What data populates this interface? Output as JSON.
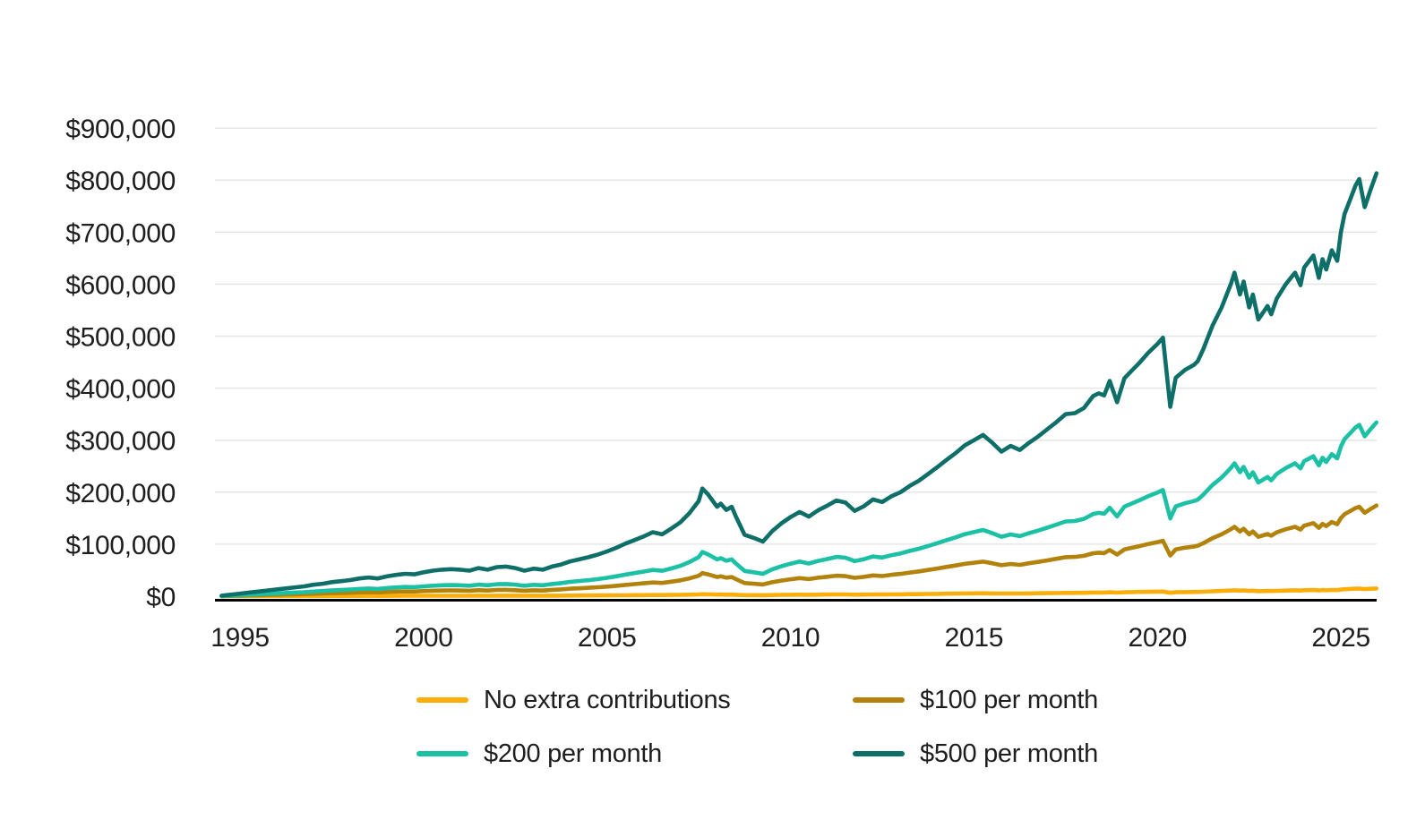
{
  "chart_data": {
    "type": "line",
    "title": "",
    "xlabel": "",
    "ylabel": "",
    "grid": "horizontal",
    "legend_position": "bottom",
    "values_unit": "thousand dollars",
    "style": {
      "background": "#FFFFFF",
      "grid_color": "#E6E6E6",
      "axis_color": "#000000",
      "text_color": "#1E1E1E"
    },
    "x_axis": {
      "ticks": [
        {
          "label": "1995",
          "year": 1995
        },
        {
          "label": "2000",
          "year": 2000
        },
        {
          "label": "2005",
          "year": 2005
        },
        {
          "label": "2010",
          "year": 2010
        },
        {
          "label": "2015",
          "year": 2015
        },
        {
          "label": "2020",
          "year": 2020
        },
        {
          "label": "2025",
          "year": 2025
        }
      ],
      "range_years": [
        1994.4,
        2026.0
      ]
    },
    "y_axis": {
      "ticks": [
        {
          "label": "$0",
          "value_k": 0
        },
        {
          "label": "$100,000",
          "value_k": 100
        },
        {
          "label": "$200,000",
          "value_k": 200
        },
        {
          "label": "$300,000",
          "value_k": 300
        },
        {
          "label": "$400,000",
          "value_k": 400
        },
        {
          "label": "$500,000",
          "value_k": 500
        },
        {
          "label": "$600,000",
          "value_k": 600
        },
        {
          "label": "$700,000",
          "value_k": 700
        },
        {
          "label": "$800,000",
          "value_k": 800
        },
        {
          "label": "$900,000",
          "value_k": 900
        }
      ],
      "range_k": [
        0,
        900
      ]
    },
    "x_years": [
      1994.5,
      1994.75,
      1995.0,
      1995.25,
      1995.5,
      1995.75,
      1996.0,
      1996.25,
      1996.5,
      1996.75,
      1997.0,
      1997.25,
      1997.5,
      1997.75,
      1998.0,
      1998.25,
      1998.5,
      1998.75,
      1999.0,
      1999.25,
      1999.5,
      1999.75,
      2000.0,
      2000.25,
      2000.5,
      2000.75,
      2001.0,
      2001.25,
      2001.5,
      2001.75,
      2002.0,
      2002.25,
      2002.5,
      2002.75,
      2003.0,
      2003.25,
      2003.5,
      2003.75,
      2004.0,
      2004.25,
      2004.5,
      2004.75,
      2005.0,
      2005.25,
      2005.5,
      2005.75,
      2006.0,
      2006.25,
      2006.5,
      2006.75,
      2007.0,
      2007.25,
      2007.5,
      2007.6,
      2007.75,
      2008.0,
      2008.1,
      2008.25,
      2008.4,
      2008.5,
      2008.75,
      2009.0,
      2009.25,
      2009.5,
      2009.75,
      2010.0,
      2010.25,
      2010.5,
      2010.75,
      2011.0,
      2011.25,
      2011.5,
      2011.75,
      2012.0,
      2012.25,
      2012.5,
      2012.75,
      2013.0,
      2013.25,
      2013.5,
      2013.75,
      2014.0,
      2014.25,
      2014.5,
      2014.75,
      2015.0,
      2015.25,
      2015.5,
      2015.75,
      2016.0,
      2016.25,
      2016.5,
      2016.75,
      2017.0,
      2017.25,
      2017.5,
      2017.75,
      2018.0,
      2018.25,
      2018.4,
      2018.55,
      2018.7,
      2018.9,
      2019.1,
      2019.25,
      2019.5,
      2019.75,
      2020.0,
      2020.15,
      2020.35,
      2020.5,
      2020.75,
      2021.0,
      2021.1,
      2021.25,
      2021.5,
      2021.75,
      2022.0,
      2022.1,
      2022.25,
      2022.35,
      2022.5,
      2022.6,
      2022.75,
      2023.0,
      2023.1,
      2023.25,
      2023.5,
      2023.75,
      2023.9,
      2024.0,
      2024.25,
      2024.4,
      2024.5,
      2024.6,
      2024.75,
      2024.9,
      2025.0,
      2025.1,
      2025.25,
      2025.4,
      2025.5,
      2025.65,
      2025.8,
      2025.97
    ],
    "series": [
      {
        "name": "No extra contributions",
        "color": "#FBAE09",
        "values_k": [
          0,
          0.1,
          0.1,
          0.1,
          0.2,
          0.2,
          0.2,
          0.3,
          0.3,
          0.3,
          0.4,
          0.4,
          0.5,
          0.5,
          0.6,
          0.6,
          0.7,
          0.6,
          0.7,
          0.7,
          0.8,
          0.8,
          0.8,
          0.9,
          0.9,
          0.9,
          0.9,
          0.9,
          1,
          0.9,
          1,
          1,
          1,
          0.9,
          1,
          0.9,
          1,
          1.1,
          1.2,
          1.3,
          1.4,
          1.5,
          1.6,
          1.7,
          1.8,
          2,
          2.1,
          2.2,
          2.2,
          2.4,
          2.6,
          2.9,
          3.3,
          3.8,
          3.6,
          3.1,
          3.2,
          3,
          3.1,
          2.8,
          2.1,
          2,
          1.9,
          2.3,
          2.5,
          2.8,
          2.9,
          2.8,
          3,
          3.2,
          3.3,
          3.3,
          3,
          3.1,
          3.4,
          3.3,
          3.5,
          3.6,
          3.9,
          4,
          4.3,
          4.5,
          4.8,
          5,
          5.3,
          5.5,
          5.6,
          5.4,
          5.1,
          5.3,
          5.1,
          5.4,
          5.6,
          5.8,
          6.1,
          6.4,
          6.4,
          6.6,
          7,
          7.1,
          7,
          7.5,
          6.8,
          7.6,
          7.8,
          8.2,
          8.5,
          8.8,
          9,
          6.6,
          7.6,
          7.9,
          8.1,
          8.2,
          8.6,
          9.5,
          10.1,
          10.9,
          11.3,
          10.6,
          11,
          10.1,
          10.6,
          9.7,
          10.2,
          9.9,
          10.4,
          10.9,
          11.3,
          10.9,
          11.5,
          11.9,
          11.1,
          11.8,
          11.4,
          12.1,
          11.7,
          12.7,
          13.4,
          13.9,
          14.4,
          14.6,
          13.6,
          14.2,
          14.8
        ]
      },
      {
        "name": "$100 per month",
        "color": "#B2820B",
        "values_k": [
          0.2,
          0.6,
          1.1,
          1.5,
          1.9,
          2.4,
          2.8,
          3.2,
          3.6,
          4.1,
          4.7,
          5.1,
          5.8,
          6.2,
          6.6,
          7.3,
          7.7,
          7.3,
          8.2,
          8.8,
          9.2,
          9,
          9.9,
          10.5,
          10.9,
          11.2,
          10.9,
          10.5,
          11.6,
          10.9,
          12,
          12.2,
          11.6,
          10.5,
          11.4,
          10.9,
          12.2,
          13.1,
          14.4,
          15.2,
          16.1,
          17.2,
          18.4,
          19.9,
          21.7,
          23.2,
          24.7,
          26.4,
          25.5,
          27.9,
          30.5,
          34.3,
          39.3,
          44.4,
          42,
          36.9,
          38.2,
          35.6,
          36.9,
          33.2,
          25.3,
          24,
          22.5,
          26.8,
          30,
          32.6,
          34.7,
          32.8,
          35.4,
          37.3,
          39.5,
          38.6,
          35.2,
          37.1,
          39.9,
          38.8,
          41.2,
          42.9,
          45.5,
          47.6,
          50.4,
          53.2,
          56.2,
          59,
          62.2,
          64.4,
          66.5,
          63.3,
          59.6,
          62,
          60.3,
          63.3,
          65.9,
          68.9,
          71.9,
          75.1,
          75.5,
          77.6,
          82.6,
          83.7,
          82.8,
          88.8,
          80,
          89.9,
          92.2,
          96.1,
          100.4,
          104,
          106.6,
          78.1,
          90.1,
          93.3,
          95.5,
          97,
          101.9,
          111.5,
          119,
          128.7,
          133.4,
          124.4,
          129.8,
          119,
          124.4,
          114.1,
          119.7,
          116.3,
          122.7,
          128.7,
          133.4,
          128.3,
          135.6,
          140.5,
          131.3,
          139,
          134.7,
          142.6,
          138.4,
          150.2,
          157.7,
          163.5,
          169.5,
          172,
          160.4,
          167.3,
          174.4
        ]
      },
      {
        "name": "$200 per month",
        "color": "#1BC0A5",
        "values_k": [
          0.4,
          1.2,
          2.1,
          2.9,
          3.7,
          4.5,
          5.3,
          6.2,
          7,
          7.8,
          9,
          9.9,
          11.1,
          11.9,
          12.7,
          14,
          14.8,
          14,
          15.6,
          16.8,
          17.7,
          17.3,
          18.9,
          20.1,
          21,
          21.4,
          21,
          20.1,
          22.2,
          21,
          23,
          23.4,
          22.2,
          20.1,
          21.8,
          21,
          23.4,
          25.1,
          27.5,
          29.2,
          30.8,
          32.9,
          35.3,
          38.2,
          41.5,
          44.4,
          47.3,
          50.5,
          48.9,
          53.4,
          58.3,
          65.7,
          75.2,
          85.1,
          80.5,
          70.7,
          73.1,
          68.2,
          70.7,
          63.7,
          48.5,
          46,
          43.1,
          51.4,
          57.5,
          62.5,
          66.6,
          62.9,
          67.8,
          71.5,
          75.6,
          74,
          67.4,
          71.1,
          76.4,
          74.4,
          78.9,
          82.2,
          87.1,
          91.2,
          96.6,
          101.9,
          107.7,
          113,
          119.2,
          123.3,
          127.4,
          121.2,
          114.2,
          118.8,
          115.5,
          121.2,
          126.1,
          131.9,
          137.7,
          143.8,
          144.6,
          148.7,
          158.2,
          160.3,
          158.6,
          170.1,
          153.3,
          172.2,
          176.7,
          184.1,
          192.3,
          199.3,
          204.2,
          149.6,
          172.6,
          178.7,
          182.9,
          185.7,
          195.2,
          213.7,
          228,
          246.5,
          255.6,
          238.3,
          248.6,
          228,
          238.3,
          218.6,
          229.3,
          222.7,
          235,
          246.5,
          255.6,
          245.7,
          259.7,
          269.1,
          251.5,
          266.3,
          258,
          273.2,
          265,
          287.6,
          302,
          313.1,
          324.6,
          329.5,
          307.4,
          320.5,
          334.1
        ]
      },
      {
        "name": "$500 per month",
        "color": "#0D6F68",
        "values_k": [
          1,
          3,
          5,
          7,
          9,
          11,
          13,
          15,
          17,
          19,
          22,
          24,
          27,
          29,
          31,
          34,
          36,
          34,
          38,
          41,
          43,
          42,
          46,
          49,
          51,
          52,
          51,
          49,
          54,
          51,
          56,
          57,
          54,
          49,
          53,
          51,
          57,
          61,
          67,
          71,
          75,
          80,
          86,
          93,
          101,
          108,
          115,
          123,
          119,
          130,
          142,
          160,
          183,
          207,
          196,
          172,
          178,
          166,
          172,
          155,
          118,
          112,
          105,
          125,
          140,
          152,
          162,
          153,
          165,
          174,
          184,
          180,
          164,
          173,
          186,
          181,
          192,
          200,
          212,
          222,
          235,
          248,
          262,
          275,
          290,
          300,
          310,
          295,
          278,
          289,
          281,
          295,
          307,
          321,
          335,
          350,
          352,
          362,
          385,
          390,
          386,
          414,
          373,
          419,
          430,
          448,
          468,
          485,
          497,
          364,
          420,
          435,
          445,
          452,
          475,
          520,
          555,
          600,
          622,
          580,
          605,
          555,
          580,
          532,
          558,
          542,
          572,
          600,
          622,
          598,
          632,
          655,
          612,
          648,
          628,
          665,
          645,
          700,
          735,
          762,
          790,
          802,
          748,
          780,
          813
        ]
      }
    ]
  }
}
